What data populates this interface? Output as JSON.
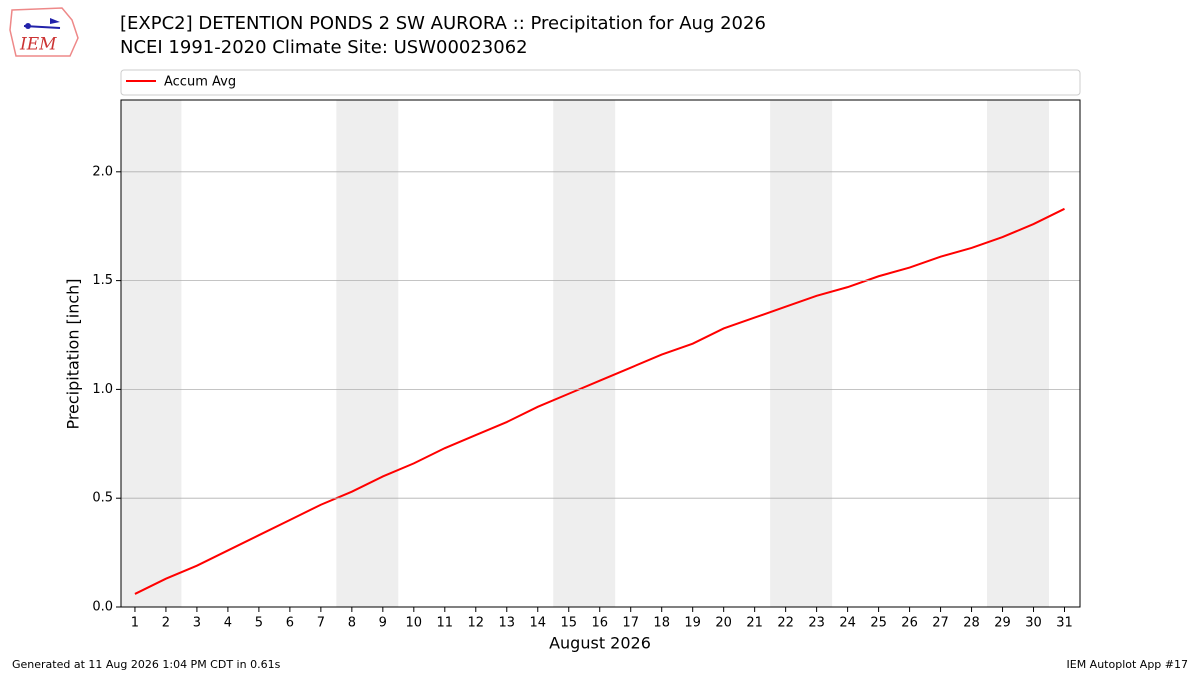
{
  "chart_data": {
    "type": "line",
    "title": "[EXPC2] DETENTION PONDS 2 SW AURORA :: Precipitation for Aug 2026",
    "subtitle": "NCEI 1991-2020 Climate Site: USW00023062",
    "x_label": "August 2026",
    "y_label": "Precipitation [inch]",
    "x": [
      1,
      2,
      3,
      4,
      5,
      6,
      7,
      8,
      9,
      10,
      11,
      12,
      13,
      14,
      15,
      16,
      17,
      18,
      19,
      20,
      21,
      22,
      23,
      24,
      25,
      26,
      27,
      28,
      29,
      30,
      31
    ],
    "series": [
      {
        "name": "Accum Avg",
        "color": "#ff0000",
        "values": [
          0.06,
          0.13,
          0.19,
          0.26,
          0.33,
          0.4,
          0.47,
          0.53,
          0.6,
          0.66,
          0.73,
          0.79,
          0.85,
          0.92,
          0.98,
          1.04,
          1.1,
          1.16,
          1.21,
          1.28,
          1.33,
          1.38,
          1.43,
          1.47,
          1.52,
          1.56,
          1.61,
          1.65,
          1.7,
          1.76,
          1.83
        ]
      }
    ],
    "xlim": [
      0.55,
      31.5
    ],
    "ylim": [
      0,
      2.33
    ],
    "xticks": [
      1,
      2,
      3,
      4,
      5,
      6,
      7,
      8,
      9,
      10,
      11,
      12,
      13,
      14,
      15,
      16,
      17,
      18,
      19,
      20,
      21,
      22,
      23,
      24,
      25,
      26,
      27,
      28,
      29,
      30,
      31
    ],
    "yticks": [
      {
        "value": 0,
        "label": "0.0"
      },
      0.5,
      {
        "value": 1,
        "label": "1.0"
      },
      1.5,
      {
        "value": 2,
        "label": "2.0"
      }
    ],
    "grid": true,
    "legend": "top",
    "shaded_spans": [
      [
        0.5,
        2.5
      ],
      [
        7.5,
        9.5
      ],
      [
        14.5,
        16.5
      ],
      [
        21.5,
        23.5
      ],
      [
        28.5,
        30.5
      ]
    ],
    "shade_color": "#eeeeee"
  },
  "logo": {
    "text": "IEM"
  },
  "footer": {
    "left": "Generated at 11 Aug 2026 1:04 PM CDT in 0.61s",
    "right": "IEM Autoplot App #17"
  }
}
